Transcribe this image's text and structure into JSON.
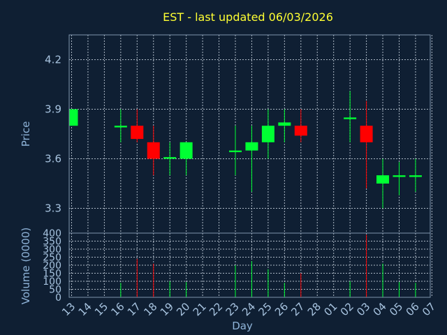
{
  "chart_data": {
    "type": "candlestick",
    "title": "EST - last updated 06/03/2026",
    "xlabel": "Day",
    "ylabel": "Price",
    "volume_label": "Volume (0000)",
    "x_tick_labels": [
      "13",
      "14",
      "15",
      "16",
      "17",
      "18",
      "19",
      "20",
      "21",
      "22",
      "23",
      "24",
      "25",
      "26",
      "27",
      "28",
      "01",
      "02",
      "03",
      "04",
      "05",
      "06",
      "07"
    ],
    "y_ticks": [
      "3.3",
      "3.6",
      "3.9",
      "4.2"
    ],
    "ylim": [
      3.15,
      4.35
    ],
    "volume_ticks": [
      "0",
      "50",
      "100",
      "150",
      "200",
      "250",
      "300",
      "350",
      "400"
    ],
    "volume_ylim": [
      0,
      400
    ],
    "grid": true,
    "colors": {
      "up": "#00ff33",
      "down": "#ff0000",
      "background": "#0f1f33",
      "title": "#ffff33"
    },
    "candles": [
      {
        "day": "13",
        "open": 3.8,
        "high": 3.9,
        "low": 3.8,
        "close": 3.9,
        "volume": 0
      },
      {
        "day": "16",
        "open": 3.79,
        "high": 3.9,
        "low": 3.7,
        "close": 3.8,
        "volume": 90
      },
      {
        "day": "17",
        "open": 3.8,
        "high": 3.9,
        "low": 3.7,
        "close": 3.72,
        "volume": 240
      },
      {
        "day": "18",
        "open": 3.7,
        "high": 3.8,
        "low": 3.5,
        "close": 3.6,
        "volume": 210
      },
      {
        "day": "19",
        "open": 3.6,
        "high": 3.7,
        "low": 3.5,
        "close": 3.61,
        "volume": 100
      },
      {
        "day": "20",
        "open": 3.6,
        "high": 3.7,
        "low": 3.5,
        "close": 3.7,
        "volume": 95
      },
      {
        "day": "23",
        "open": 3.64,
        "high": 3.8,
        "low": 3.5,
        "close": 3.65,
        "volume": 200
      },
      {
        "day": "24",
        "open": 3.65,
        "high": 3.8,
        "low": 3.4,
        "close": 3.7,
        "volume": 225
      },
      {
        "day": "25",
        "open": 3.7,
        "high": 3.9,
        "low": 3.6,
        "close": 3.8,
        "volume": 175
      },
      {
        "day": "26",
        "open": 3.8,
        "high": 3.9,
        "low": 3.7,
        "close": 3.82,
        "volume": 90
      },
      {
        "day": "27",
        "open": 3.8,
        "high": 3.9,
        "low": 3.7,
        "close": 3.74,
        "volume": 150
      },
      {
        "day": "02",
        "open": 3.84,
        "high": 4.01,
        "low": 3.7,
        "close": 3.85,
        "volume": 100
      },
      {
        "day": "03",
        "open": 3.8,
        "high": 3.95,
        "low": 3.42,
        "close": 3.7,
        "volume": 390
      },
      {
        "day": "04",
        "open": 3.45,
        "high": 3.6,
        "low": 3.3,
        "close": 3.5,
        "volume": 210
      },
      {
        "day": "05",
        "open": 3.49,
        "high": 3.58,
        "low": 3.38,
        "close": 3.5,
        "volume": 95
      },
      {
        "day": "06",
        "open": 3.49,
        "high": 3.6,
        "low": 3.4,
        "close": 3.5,
        "volume": 90
      }
    ]
  }
}
